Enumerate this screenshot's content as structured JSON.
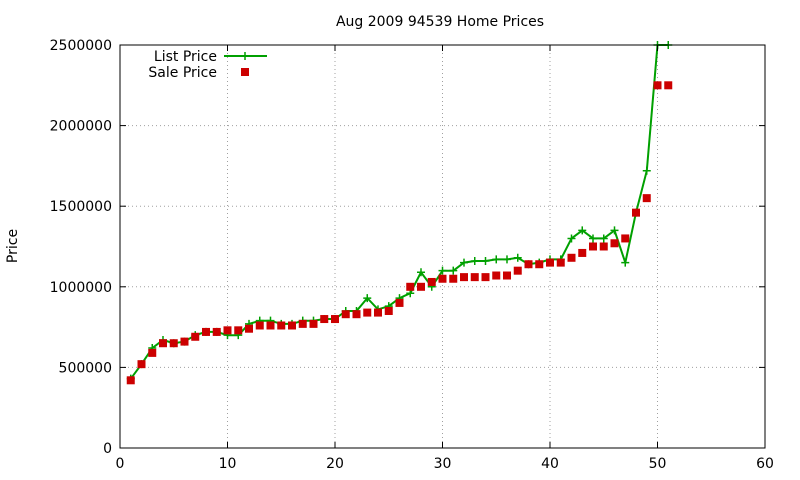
{
  "chart_data": {
    "type": "line",
    "title": "Aug 2009 94539 Home Prices",
    "xlabel": "",
    "ylabel": "Price",
    "xlim": [
      0,
      60
    ],
    "ylim": [
      0,
      2500000
    ],
    "x_ticks": [
      0,
      10,
      20,
      30,
      40,
      50,
      60
    ],
    "y_ticks": [
      0,
      500000,
      1000000,
      1500000,
      2000000,
      2500000
    ],
    "grid": true,
    "legend_position": "top-left",
    "series": [
      {
        "name": "List Price",
        "style": "line-with-plus-markers",
        "color": "#00a000",
        "x": [
          1,
          2,
          3,
          4,
          5,
          6,
          7,
          8,
          9,
          10,
          11,
          12,
          13,
          14,
          15,
          16,
          17,
          18,
          19,
          20,
          21,
          22,
          23,
          24,
          25,
          26,
          27,
          28,
          29,
          30,
          31,
          32,
          33,
          34,
          35,
          36,
          37,
          38,
          39,
          40,
          41,
          42,
          43,
          44,
          45,
          46,
          47,
          48,
          49,
          50,
          51
        ],
        "values": [
          430000,
          520000,
          620000,
          670000,
          650000,
          660000,
          700000,
          720000,
          720000,
          700000,
          700000,
          770000,
          790000,
          790000,
          770000,
          770000,
          790000,
          790000,
          800000,
          800000,
          850000,
          850000,
          930000,
          860000,
          880000,
          930000,
          960000,
          1090000,
          1000000,
          1100000,
          1100000,
          1150000,
          1160000,
          1160000,
          1170000,
          1170000,
          1180000,
          1140000,
          1150000,
          1170000,
          1170000,
          1300000,
          1350000,
          1300000,
          1300000,
          1350000,
          1150000,
          1460000,
          1720000,
          2500000,
          2500000
        ]
      },
      {
        "name": "Sale Price",
        "style": "square-markers",
        "color": "#cc0000",
        "x": [
          1,
          2,
          3,
          4,
          5,
          6,
          7,
          8,
          9,
          10,
          11,
          12,
          13,
          14,
          15,
          16,
          17,
          18,
          19,
          20,
          21,
          22,
          23,
          24,
          25,
          26,
          27,
          28,
          29,
          30,
          31,
          32,
          33,
          34,
          35,
          36,
          37,
          38,
          39,
          40,
          41,
          42,
          43,
          44,
          45,
          46,
          47,
          48,
          49,
          50,
          51
        ],
        "values": [
          420000,
          520000,
          590000,
          650000,
          650000,
          660000,
          690000,
          720000,
          720000,
          730000,
          730000,
          740000,
          760000,
          760000,
          760000,
          760000,
          770000,
          770000,
          800000,
          800000,
          830000,
          830000,
          840000,
          840000,
          850000,
          900000,
          1000000,
          1000000,
          1030000,
          1050000,
          1050000,
          1060000,
          1060000,
          1060000,
          1070000,
          1070000,
          1100000,
          1140000,
          1140000,
          1150000,
          1150000,
          1180000,
          1210000,
          1250000,
          1250000,
          1270000,
          1300000,
          1460000,
          1550000,
          2250000,
          2250000
        ]
      }
    ]
  }
}
